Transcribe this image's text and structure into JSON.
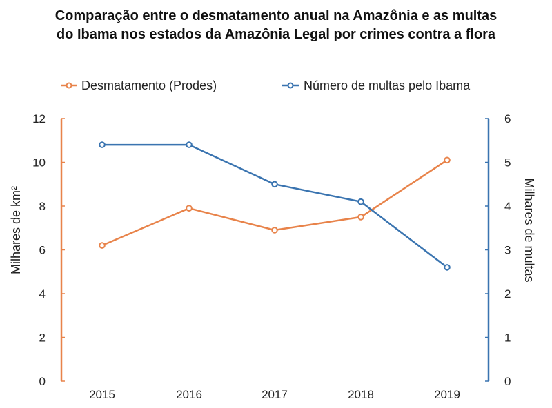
{
  "chart_data": {
    "type": "line",
    "title_line1": "Comparação entre o desmatamento anual na Amazônia e as multas",
    "title_line2": "do Ibama nos estados da Amazônia Legal por crimes contra a flora",
    "categories": [
      "2015",
      "2016",
      "2017",
      "2018",
      "2019"
    ],
    "ylabel_left": "Milhares de km²",
    "ylabel_right": "Milhares de multas",
    "ylim_left": [
      0,
      12
    ],
    "ylim_right": [
      0,
      6
    ],
    "yticks_left": [
      "0",
      "2",
      "4",
      "6",
      "8",
      "10",
      "12"
    ],
    "yticks_right": [
      "0",
      "1",
      "2",
      "3",
      "4",
      "5",
      "6"
    ],
    "legend_position": "top",
    "series": [
      {
        "name": "Desmatamento (Prodes)",
        "axis": "left",
        "color": "#E8834A",
        "values": [
          6.2,
          7.9,
          6.9,
          7.5,
          10.1
        ]
      },
      {
        "name": "Número de multas pelo Ibama",
        "axis": "right",
        "color": "#3A74B0",
        "values": [
          5.4,
          5.4,
          4.5,
          4.1,
          2.6
        ]
      }
    ]
  }
}
